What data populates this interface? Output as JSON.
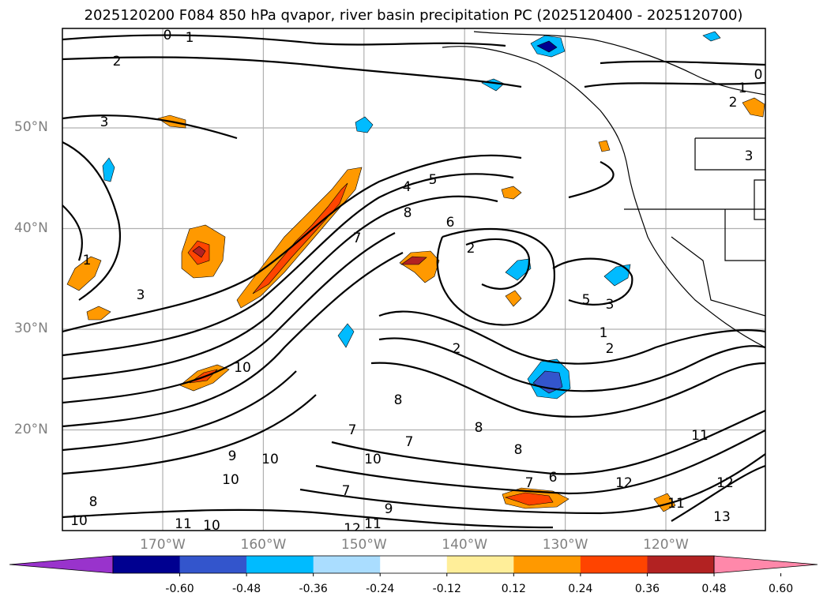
{
  "title": "2025120200 F084 850 hPa qvapor, river basin precipitation PC (2025120400 - 2025120700)",
  "map": {
    "lat_ticks": [
      {
        "value": 50,
        "label": "50°N"
      },
      {
        "value": 40,
        "label": "40°N"
      },
      {
        "value": 30,
        "label": "30°N"
      },
      {
        "value": 20,
        "label": "20°N"
      }
    ],
    "lon_ticks": [
      {
        "value": -170,
        "label": "170°W"
      },
      {
        "value": -160,
        "label": "160°W"
      },
      {
        "value": -150,
        "label": "150°W"
      },
      {
        "value": -140,
        "label": "140°W"
      },
      {
        "value": -130,
        "label": "130°W"
      },
      {
        "value": -120,
        "label": "120°W"
      }
    ],
    "gridlines": true,
    "contour_field": "850 hPa qvapor",
    "contour_labels": [
      "0",
      "1",
      "2",
      "3",
      "4",
      "5",
      "6",
      "7",
      "8",
      "9",
      "10",
      "11",
      "12",
      "13"
    ]
  },
  "colorbar": {
    "extend": "both",
    "colors": [
      "#9933cc",
      "#000090",
      "#3355cc",
      "#00bbff",
      "#aaddff",
      "#ffffff",
      "#ffee99",
      "#ff9900",
      "#ff4400",
      "#b22222",
      "#ff88aa"
    ],
    "ticks": [
      "-0.60",
      "-0.48",
      "-0.36",
      "-0.24",
      "-0.12",
      "0.12",
      "0.24",
      "0.36",
      "0.48",
      "0.60"
    ]
  }
}
